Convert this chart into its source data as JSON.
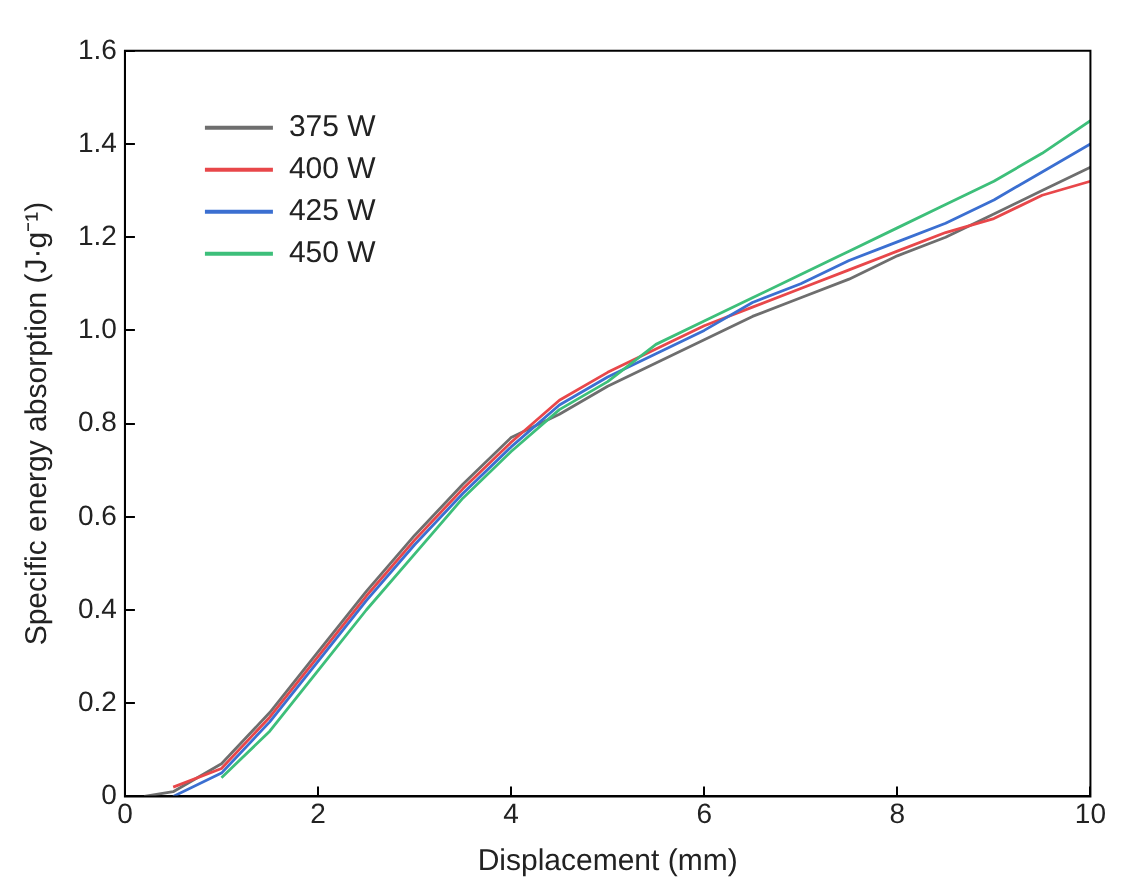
{
  "chart_data": {
    "type": "line",
    "xlabel": "Displacement (mm)",
    "ylabel": "Specific energy absorption (J·g⁻¹)",
    "xlim": [
      0,
      10
    ],
    "xticks": [
      0,
      2,
      4,
      6,
      8,
      10
    ],
    "ylim": [
      0,
      1.6
    ],
    "yticks": [
      0,
      0.2,
      0.4,
      0.6,
      0.8,
      {
        "value": 1,
        "label": "1.0"
      },
      1.2,
      1.4,
      1.6
    ],
    "grid": false,
    "legend": "top left",
    "marker": "none",
    "line_style": "solid",
    "x": [
      0.2,
      0.5,
      1,
      1.5,
      2,
      2.5,
      3,
      3.5,
      4,
      4.5,
      5,
      5.5,
      6,
      6.5,
      7,
      7.5,
      8,
      8.5,
      9,
      9.5,
      10
    ],
    "series": [
      {
        "name": "375 W",
        "color": "#6e6e6e",
        "values": [
          0,
          0.01,
          0.07,
          0.18,
          0.31,
          0.44,
          0.56,
          0.67,
          0.77,
          0.82,
          0.88,
          0.93,
          0.98,
          1.03,
          1.07,
          1.11,
          1.16,
          1.2,
          1.25,
          1.3,
          1.35
        ]
      },
      {
        "name": "400 W",
        "color": "#e8474a",
        "values": [
          null,
          0.02,
          0.06,
          0.17,
          0.3,
          0.43,
          0.55,
          0.66,
          0.76,
          0.85,
          0.91,
          0.96,
          1.01,
          1.05,
          1.09,
          1.13,
          1.17,
          1.21,
          1.24,
          1.29,
          1.32
        ]
      },
      {
        "name": "425 W",
        "color": "#3b6fd1",
        "values": [
          null,
          0.0,
          0.05,
          0.16,
          0.29,
          0.42,
          0.54,
          0.65,
          0.75,
          0.84,
          0.9,
          0.95,
          1.0,
          1.06,
          1.1,
          1.15,
          1.19,
          1.23,
          1.28,
          1.34,
          1.4
        ]
      },
      {
        "name": "450 W",
        "color": "#3dbf7a",
        "values": [
          null,
          null,
          0.04,
          0.14,
          0.27,
          0.4,
          0.52,
          0.64,
          0.74,
          0.83,
          0.89,
          0.97,
          1.02,
          1.07,
          1.12,
          1.17,
          1.22,
          1.27,
          1.32,
          1.38,
          1.45
        ]
      }
    ]
  }
}
